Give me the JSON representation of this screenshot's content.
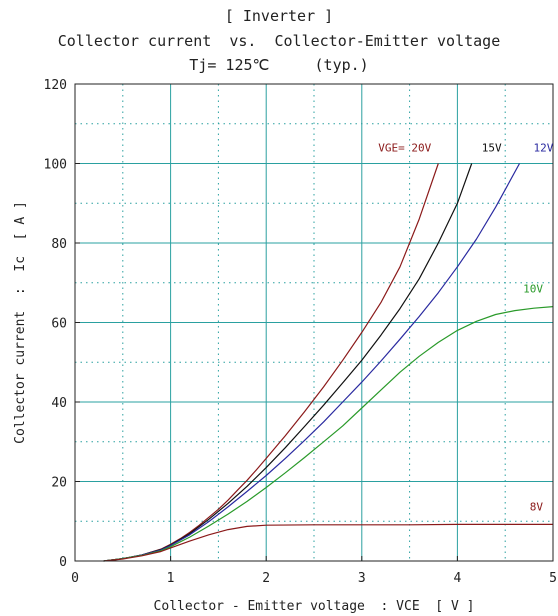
{
  "chart_data": {
    "type": "line",
    "title": "[ Inverter ]",
    "subtitle": "Collector current  vs.  Collector-Emitter voltage",
    "condition": "Tj= 125℃     (typ.)",
    "xlabel": "Collector - Emitter voltage  : VCE  [ V ]",
    "ylabel": "Collector current  :  Ic  [ A ]",
    "xlim": [
      0,
      5
    ],
    "ylim": [
      0,
      120
    ],
    "xticks": [
      "0",
      "1",
      "2",
      "3",
      "4",
      "5"
    ],
    "yticks": [
      "0",
      "20",
      "40",
      "60",
      "80",
      "100",
      "120"
    ],
    "grid": true,
    "series": [
      {
        "name": "VGE= 20V",
        "color": "#8b1a1a",
        "x": [
          0.3,
          0.5,
          0.7,
          0.9,
          1.0,
          1.1,
          1.2,
          1.3,
          1.4,
          1.5,
          1.6,
          1.7,
          1.8,
          1.9,
          2.0,
          2.2,
          2.4,
          2.6,
          2.8,
          3.0,
          3.2,
          3.4,
          3.6,
          3.8
        ],
        "y": [
          0,
          0.6,
          1.5,
          3.0,
          4.2,
          5.6,
          7.2,
          9.0,
          11.0,
          13.0,
          15.3,
          17.8,
          20.3,
          23.0,
          25.8,
          31.5,
          37.5,
          43.8,
          50.5,
          57.5,
          65.0,
          74.0,
          86.0,
          100
        ]
      },
      {
        "name": "15V",
        "color": "#111111",
        "x": [
          0.3,
          0.5,
          0.7,
          0.9,
          1.0,
          1.2,
          1.4,
          1.6,
          1.8,
          2.0,
          2.2,
          2.4,
          2.6,
          2.8,
          3.0,
          3.2,
          3.4,
          3.6,
          3.8,
          4.0,
          4.15
        ],
        "y": [
          0,
          0.6,
          1.5,
          2.9,
          4.0,
          6.9,
          10.5,
          14.5,
          18.8,
          23.5,
          28.5,
          33.8,
          39.2,
          44.8,
          50.5,
          56.8,
          63.5,
          71.0,
          80.0,
          90.0,
          100
        ]
      },
      {
        "name": "12V",
        "color": "#2a2aa0",
        "x": [
          0.3,
          0.5,
          0.7,
          0.9,
          1.0,
          1.2,
          1.4,
          1.6,
          1.8,
          2.0,
          2.2,
          2.4,
          2.6,
          2.8,
          3.0,
          3.2,
          3.4,
          3.6,
          3.8,
          4.0,
          4.2,
          4.4,
          4.65
        ],
        "y": [
          0,
          0.6,
          1.5,
          2.8,
          3.9,
          6.6,
          9.9,
          13.6,
          17.5,
          21.5,
          25.8,
          30.3,
          35.0,
          40.0,
          45.0,
          50.3,
          55.8,
          61.5,
          67.5,
          74.0,
          81.0,
          89.0,
          100
        ]
      },
      {
        "name": "10V",
        "color": "#2a9a2a",
        "x": [
          0.3,
          0.5,
          0.7,
          0.9,
          1.0,
          1.2,
          1.4,
          1.6,
          1.8,
          2.0,
          2.2,
          2.4,
          2.6,
          2.8,
          3.0,
          3.2,
          3.4,
          3.6,
          3.8,
          4.0,
          4.2,
          4.4,
          4.6,
          4.8,
          5.0
        ],
        "y": [
          0,
          0.6,
          1.4,
          2.6,
          3.6,
          6.0,
          8.8,
          11.8,
          15.0,
          18.5,
          22.2,
          26.0,
          30.0,
          34.0,
          38.5,
          43.0,
          47.5,
          51.5,
          55.0,
          58.0,
          60.3,
          62.0,
          63.0,
          63.6,
          64.0
        ]
      },
      {
        "name": "8V",
        "color": "#8b1a1a",
        "x": [
          0.3,
          0.5,
          0.7,
          0.9,
          1.0,
          1.2,
          1.4,
          1.6,
          1.8,
          2.0,
          2.5,
          3.0,
          3.5,
          4.0,
          4.5,
          5.0
        ],
        "y": [
          0,
          0.5,
          1.3,
          2.4,
          3.3,
          5.0,
          6.6,
          7.9,
          8.7,
          9.0,
          9.1,
          9.1,
          9.1,
          9.2,
          9.2,
          9.2
        ]
      }
    ]
  }
}
